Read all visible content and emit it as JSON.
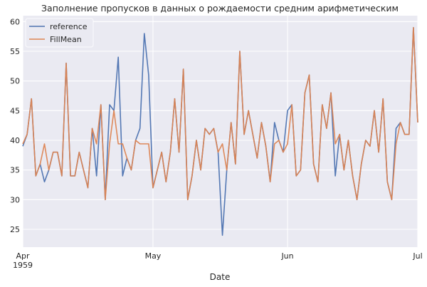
{
  "chart_data": {
    "type": "line",
    "title": "Заполнение пропусков в данных о рождаемости средним арифметическим",
    "xlabel": "Date",
    "ylabel": "",
    "x_start": "1959-04-01",
    "x_end": "1959-07-01",
    "x_ticks": [
      {
        "date": "1959-04-01",
        "label": "Apr",
        "sublabel": "1959"
      },
      {
        "date": "1959-05-01",
        "label": "May",
        "sublabel": ""
      },
      {
        "date": "1959-06-01",
        "label": "Jun",
        "sublabel": ""
      },
      {
        "date": "1959-07-01",
        "label": "Jul",
        "sublabel": ""
      }
    ],
    "ylim": [
      22,
      61
    ],
    "y_ticks": [
      25,
      30,
      35,
      40,
      45,
      50,
      55,
      60
    ],
    "grid": true,
    "legend": "top-left",
    "series": [
      {
        "name": "reference",
        "color": "#4c72b0",
        "values": [
          39,
          41,
          47,
          34,
          36,
          33,
          35,
          38,
          38,
          34,
          53,
          34,
          34,
          38,
          35,
          32,
          42,
          34,
          46,
          30,
          46,
          45,
          54,
          34,
          37,
          35,
          40,
          42,
          58,
          51,
          32,
          35,
          38,
          33,
          38,
          47,
          38,
          52,
          30,
          34,
          40,
          35,
          42,
          41,
          42,
          38,
          24,
          35,
          43,
          36,
          55,
          41,
          45,
          41,
          37,
          43,
          39,
          33,
          43,
          40,
          38,
          45,
          46,
          34,
          35,
          48,
          51,
          36,
          33,
          46,
          42,
          48,
          34,
          41,
          35,
          40,
          34,
          30,
          36,
          40,
          39,
          45,
          38,
          47,
          33,
          30,
          42,
          43,
          41,
          41,
          59,
          43
        ]
      },
      {
        "name": "FillMean",
        "color": "#dd8452",
        "values": [
          39.4,
          41,
          47,
          34,
          36,
          39.4,
          35,
          38,
          38,
          34,
          53,
          34,
          34,
          38,
          35,
          32,
          42,
          39.4,
          46,
          30,
          39.4,
          45,
          39.4,
          39.4,
          37,
          35,
          40,
          39.4,
          39.4,
          39.4,
          32,
          35,
          38,
          33,
          38,
          47,
          38,
          52,
          30,
          34,
          40,
          35,
          42,
          41,
          42,
          38,
          39.4,
          35,
          43,
          36,
          55,
          41,
          45,
          41,
          37,
          43,
          39,
          33,
          39.4,
          40,
          38,
          39.4,
          46,
          34,
          35,
          48,
          51,
          36,
          33,
          46,
          42,
          48,
          39.4,
          41,
          35,
          40,
          34,
          30,
          36,
          40,
          39,
          45,
          38,
          47,
          33,
          30,
          39.4,
          43,
          41,
          41,
          59,
          43
        ]
      }
    ]
  }
}
